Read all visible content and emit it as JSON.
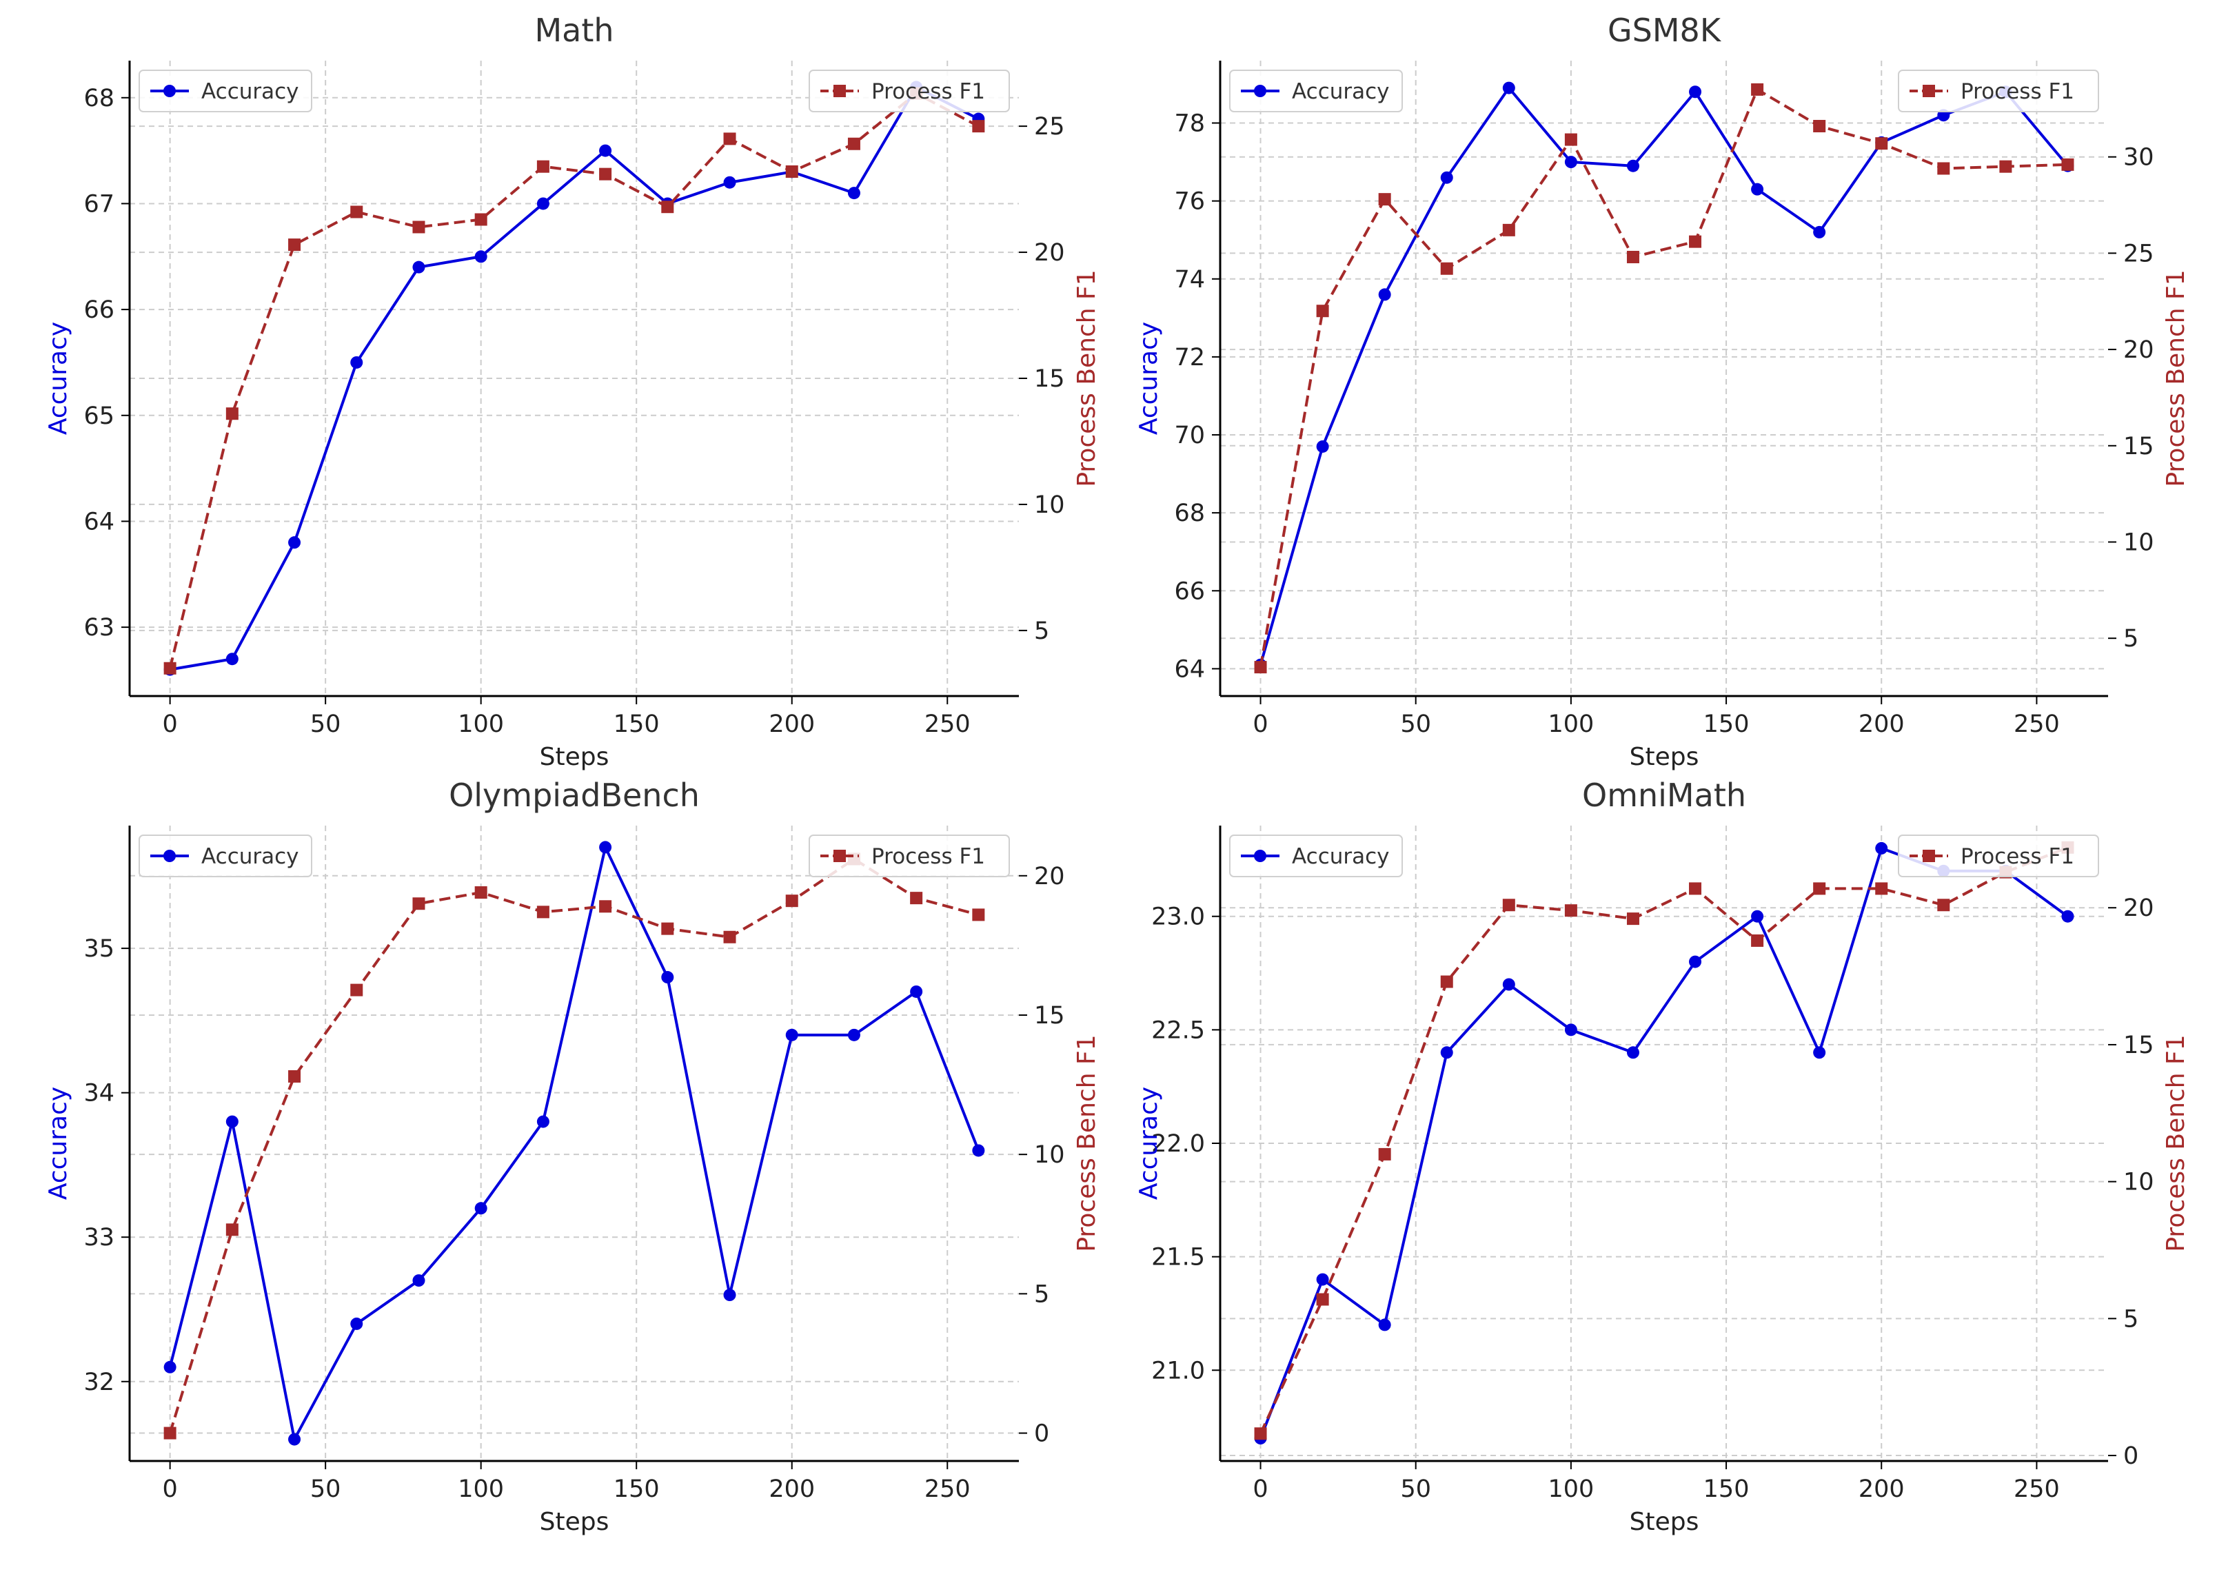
{
  "colors": {
    "accuracy": "#0000dd",
    "process_f1": "#a52a2a",
    "axis": "#000000",
    "grid": "#cccccc",
    "text": "#222222"
  },
  "icons": {
    "accuracy_marker": "circle-marker",
    "process_f1_marker": "square-marker"
  },
  "chart_data": [
    {
      "type": "line",
      "title": "Math",
      "xlabel": "Steps",
      "ylabel": "Accuracy",
      "y2label": "Process Bench F1",
      "x": [
        0,
        20,
        40,
        60,
        80,
        100,
        120,
        140,
        160,
        180,
        200,
        220,
        240,
        260
      ],
      "xlim": [
        -13,
        273
      ],
      "xticks": [
        0,
        50,
        100,
        150,
        200,
        250
      ],
      "ylim": [
        62.35,
        68.35
      ],
      "yticks": [
        63,
        64,
        65,
        66,
        67,
        68
      ],
      "y2lim": [
        2.4,
        27.6
      ],
      "y2ticks": [
        5,
        10,
        15,
        20,
        25
      ],
      "grid": true,
      "legend_left": "top-left",
      "legend_right": "top-right",
      "series": [
        {
          "name": "Accuracy",
          "axis": "left",
          "style": "solid",
          "marker": "circle",
          "values": [
            62.6,
            62.7,
            63.8,
            65.5,
            66.4,
            66.5,
            67.0,
            67.5,
            67.0,
            67.2,
            67.3,
            67.1,
            68.1,
            67.8
          ]
        },
        {
          "name": "Process F1",
          "axis": "right",
          "style": "dashed",
          "marker": "square",
          "values": [
            3.5,
            13.6,
            20.3,
            21.6,
            21.0,
            21.3,
            23.4,
            23.1,
            21.8,
            24.5,
            23.2,
            24.3,
            26.3,
            25.0
          ]
        }
      ]
    },
    {
      "type": "line",
      "title": "GSM8K",
      "xlabel": "Steps",
      "ylabel": "Accuracy",
      "y2label": "Process Bench F1",
      "x": [
        0,
        20,
        40,
        60,
        80,
        100,
        120,
        140,
        160,
        180,
        200,
        220,
        240,
        260
      ],
      "xlim": [
        -13,
        273
      ],
      "xticks": [
        0,
        50,
        100,
        150,
        200,
        250
      ],
      "ylim": [
        63.3,
        79.6
      ],
      "yticks": [
        64,
        66,
        68,
        70,
        72,
        74,
        76,
        78
      ],
      "y2lim": [
        2.0,
        35.0
      ],
      "y2ticks": [
        5,
        10,
        15,
        20,
        25,
        30
      ],
      "grid": true,
      "legend_left": "top-left",
      "legend_right": "top-right",
      "series": [
        {
          "name": "Accuracy",
          "axis": "left",
          "style": "solid",
          "marker": "circle",
          "values": [
            64.1,
            69.7,
            73.6,
            76.6,
            78.9,
            77.0,
            76.9,
            78.8,
            76.3,
            75.2,
            77.5,
            78.2,
            78.8,
            76.9
          ]
        },
        {
          "name": "Process F1",
          "axis": "right",
          "style": "dashed",
          "marker": "square",
          "values": [
            3.5,
            22.0,
            27.8,
            24.2,
            26.2,
            30.9,
            24.8,
            25.6,
            33.5,
            31.6,
            30.7,
            29.4,
            29.5,
            29.6
          ]
        }
      ]
    },
    {
      "type": "line",
      "title": "OlympiadBench",
      "xlabel": "Steps",
      "ylabel": "Accuracy",
      "y2label": "Process Bench F1",
      "x": [
        0,
        20,
        40,
        60,
        80,
        100,
        120,
        140,
        160,
        180,
        200,
        220,
        240,
        260
      ],
      "xlim": [
        -13,
        273
      ],
      "xticks": [
        0,
        50,
        100,
        150,
        200,
        250
      ],
      "ylim": [
        31.45,
        35.85
      ],
      "yticks": [
        32,
        33,
        34,
        35
      ],
      "y2lim": [
        -1.0,
        21.8
      ],
      "y2ticks": [
        0,
        5,
        10,
        15,
        20
      ],
      "grid": true,
      "legend_left": "top-left",
      "legend_right": "top-right",
      "series": [
        {
          "name": "Accuracy",
          "axis": "left",
          "style": "solid",
          "marker": "circle",
          "values": [
            32.1,
            33.8,
            31.6,
            32.4,
            32.7,
            33.2,
            33.8,
            35.7,
            34.8,
            32.6,
            34.4,
            34.4,
            34.7,
            33.6
          ]
        },
        {
          "name": "Process F1",
          "axis": "right",
          "style": "dashed",
          "marker": "square",
          "values": [
            0.0,
            7.3,
            12.8,
            15.9,
            19.0,
            19.4,
            18.7,
            18.9,
            18.1,
            17.8,
            19.1,
            20.6,
            19.2,
            18.6
          ]
        }
      ]
    },
    {
      "type": "line",
      "title": "OmniMath",
      "xlabel": "Steps",
      "ylabel": "Accuracy",
      "y2label": "Process Bench F1",
      "x": [
        0,
        20,
        40,
        60,
        80,
        100,
        120,
        140,
        160,
        180,
        200,
        220,
        240,
        260
      ],
      "xlim": [
        -13,
        273
      ],
      "xticks": [
        0,
        50,
        100,
        150,
        200,
        250
      ],
      "ylim": [
        20.6,
        23.4
      ],
      "yticks": [
        21.0,
        21.5,
        22.0,
        22.5,
        23.0
      ],
      "y2lim": [
        -0.2,
        23.0
      ],
      "y2ticks": [
        0,
        5,
        10,
        15,
        20
      ],
      "grid": true,
      "legend_left": "top-left",
      "legend_right": "top-right",
      "series": [
        {
          "name": "Accuracy",
          "axis": "left",
          "style": "solid",
          "marker": "circle",
          "values": [
            20.7,
            21.4,
            21.2,
            22.4,
            22.7,
            22.5,
            22.4,
            22.8,
            23.0,
            22.4,
            23.3,
            23.2,
            23.2,
            23.0
          ]
        },
        {
          "name": "Process F1",
          "axis": "right",
          "style": "dashed",
          "marker": "square",
          "values": [
            0.8,
            5.7,
            11.0,
            17.3,
            20.1,
            19.9,
            19.6,
            20.7,
            18.8,
            20.7,
            20.7,
            20.1,
            21.3,
            22.2
          ]
        }
      ]
    }
  ]
}
